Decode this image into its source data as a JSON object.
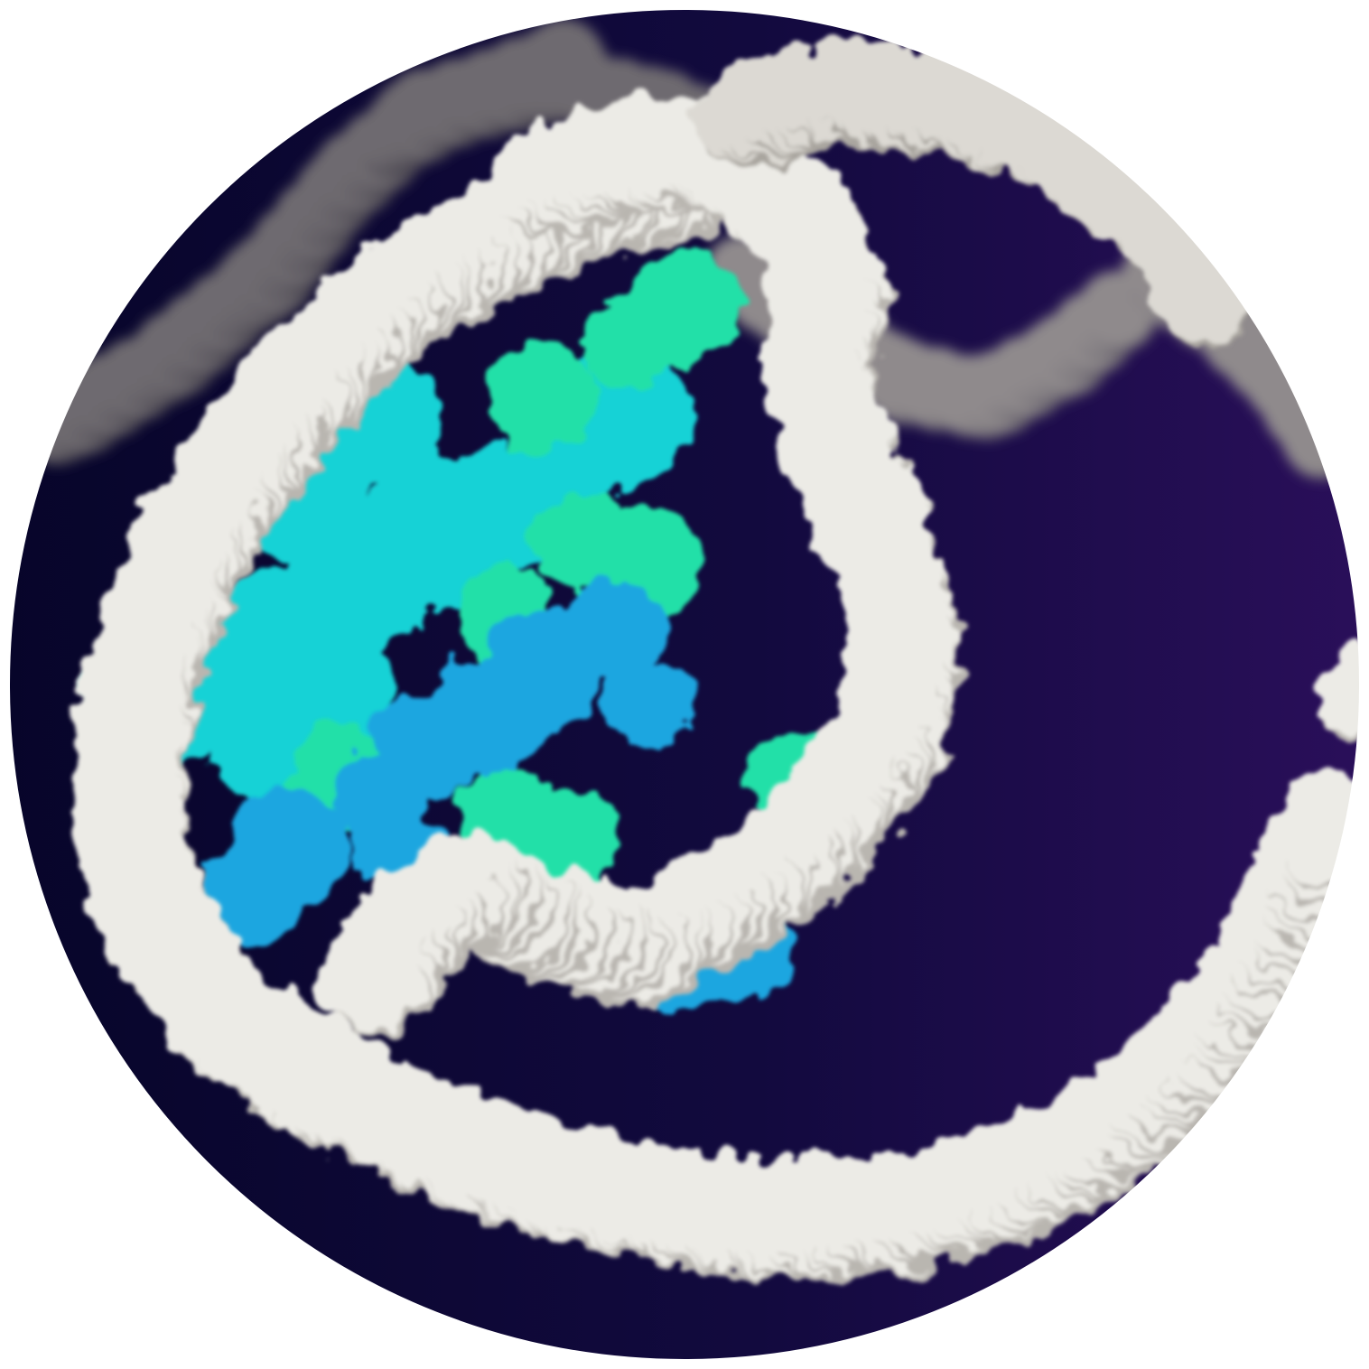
{
  "image": {
    "subject": "nucleosome-molecular-surface-render",
    "colors": {
      "page_background": "#ffffff",
      "backdrop_dark": "#07052a",
      "backdrop_purple": "#2a0f5a",
      "dna_white": "#ecebe6",
      "dna_shadow": "#b9b6b0",
      "dna_distant": "#6e6a70",
      "histone_cyan": "#19d2d6",
      "histone_blue": "#1aa6e0",
      "histone_green": "#21e0a8"
    }
  }
}
